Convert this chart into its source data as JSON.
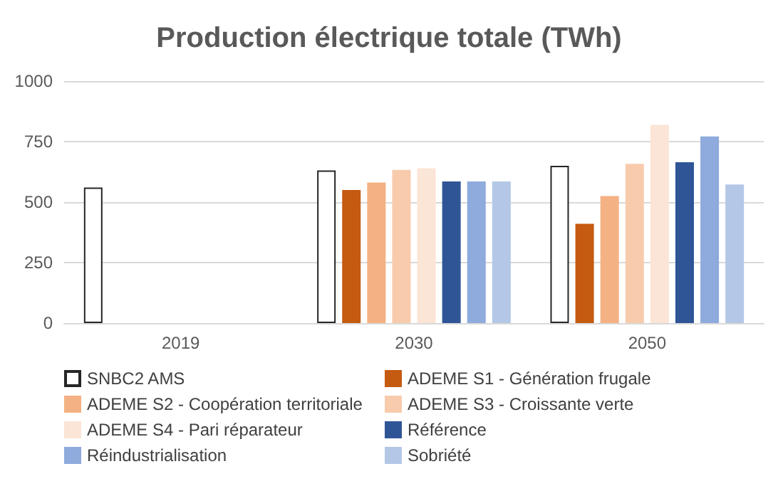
{
  "chart_data": {
    "type": "bar",
    "title": "Production électrique totale (TWh)",
    "categories": [
      "2019",
      "2030",
      "2050"
    ],
    "series": [
      {
        "name": "SNBC2 AMS",
        "color": "#ffffff",
        "values": [
          560,
          631,
          650
        ]
      },
      {
        "name": "ADEME S1 - Génération frugale",
        "color": "#c55a11",
        "values": [
          null,
          550,
          410
        ]
      },
      {
        "name": "ADEME S2 - Coopération territoriale",
        "color": "#f4b183",
        "values": [
          null,
          581,
          525
        ]
      },
      {
        "name": "ADEME S3 - Croissante verte",
        "color": "#f8cbad",
        "values": [
          null,
          633,
          658
        ]
      },
      {
        "name": "ADEME S4 - Pari réparateur",
        "color": "#fbe5d6",
        "values": [
          null,
          640,
          819
        ]
      },
      {
        "name": "Référence",
        "color": "#2f5597",
        "values": [
          null,
          585,
          665
        ]
      },
      {
        "name": "Réindustrialisation",
        "color": "#8faadc",
        "values": [
          null,
          585,
          771
        ]
      },
      {
        "name": "Sobriété",
        "color": "#b4c7e7",
        "values": [
          null,
          585,
          573
        ]
      }
    ],
    "ylim": [
      0,
      1000
    ],
    "yticks": [
      0,
      250,
      500,
      750,
      1000
    ],
    "grid": "y",
    "legend": "bottom"
  }
}
